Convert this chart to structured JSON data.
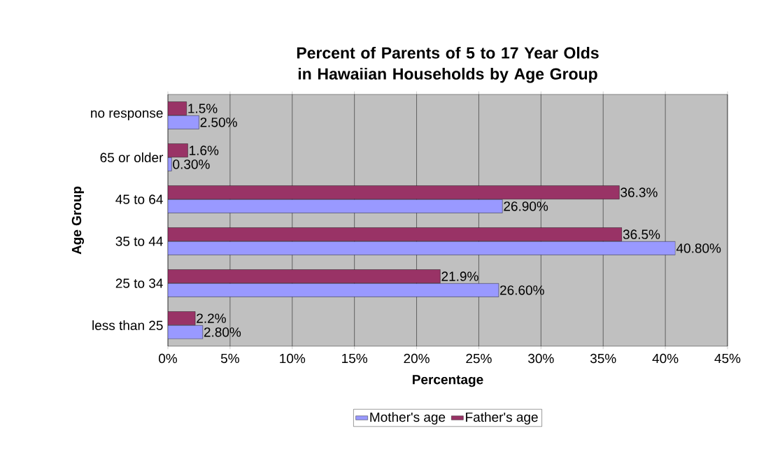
{
  "chart_data": {
    "type": "bar",
    "orientation": "horizontal",
    "title": "Percent of Parents of 5 to 17 Year Olds in Hawaiian Households by Age Group",
    "xlabel": "Percentage",
    "ylabel": "Age Group",
    "categories": [
      "no response",
      "65 or older",
      "45 to 64",
      "35 to 44",
      "25 to 34",
      "less than 25"
    ],
    "series": [
      {
        "name": "Mother's age",
        "color": "#9999ff",
        "values": [
          2.5,
          0.3,
          26.9,
          40.8,
          26.6,
          2.8
        ],
        "value_labels": [
          "2.50%",
          "0.30%",
          "26.90%",
          "40.80%",
          "26.60%",
          "2.80%"
        ]
      },
      {
        "name": "Father's age",
        "color": "#993366",
        "values": [
          1.5,
          1.6,
          36.3,
          36.5,
          21.9,
          2.2
        ],
        "value_labels": [
          "1.5%",
          "1.6%",
          "36.3%",
          "36.5%",
          "21.9%",
          "2.2%"
        ]
      }
    ],
    "xlim": [
      0,
      45
    ],
    "xticks": [
      {
        "value": 0,
        "label": "0%"
      },
      {
        "value": 5,
        "label": "5%"
      },
      {
        "value": 10,
        "label": "10%"
      },
      {
        "value": 15,
        "label": "15%"
      },
      {
        "value": 20,
        "label": "20%"
      },
      {
        "value": 25,
        "label": "25%"
      },
      {
        "value": 30,
        "label": "30%"
      },
      {
        "value": 35,
        "label": "35%"
      },
      {
        "value": 40,
        "label": "40%"
      },
      {
        "value": 45,
        "label": "45%"
      }
    ],
    "grid": "x",
    "legend": "bottom"
  }
}
